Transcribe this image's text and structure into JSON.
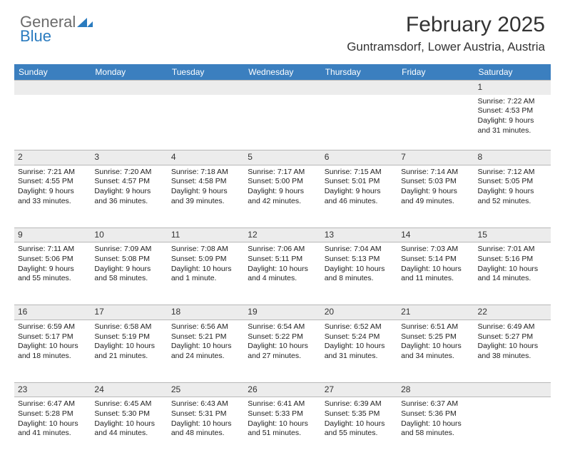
{
  "logo": {
    "general": "General",
    "blue": "Blue"
  },
  "title": "February 2025",
  "location": "Guntramsdorf, Lower Austria, Austria",
  "colors": {
    "header_bg": "#3b7fbf",
    "header_text": "#ffffff",
    "daynum_bg": "#ececec",
    "border": "#b8b8b8",
    "logo_gray": "#6b6b6b",
    "logo_blue": "#2a7bbf"
  },
  "weekdays": [
    "Sunday",
    "Monday",
    "Tuesday",
    "Wednesday",
    "Thursday",
    "Friday",
    "Saturday"
  ],
  "weeks": [
    {
      "nums": [
        "",
        "",
        "",
        "",
        "",
        "",
        "1"
      ],
      "cells": [
        null,
        null,
        null,
        null,
        null,
        null,
        {
          "sunrise": "Sunrise: 7:22 AM",
          "sunset": "Sunset: 4:53 PM",
          "dl1": "Daylight: 9 hours",
          "dl2": "and 31 minutes."
        }
      ]
    },
    {
      "nums": [
        "2",
        "3",
        "4",
        "5",
        "6",
        "7",
        "8"
      ],
      "cells": [
        {
          "sunrise": "Sunrise: 7:21 AM",
          "sunset": "Sunset: 4:55 PM",
          "dl1": "Daylight: 9 hours",
          "dl2": "and 33 minutes."
        },
        {
          "sunrise": "Sunrise: 7:20 AM",
          "sunset": "Sunset: 4:57 PM",
          "dl1": "Daylight: 9 hours",
          "dl2": "and 36 minutes."
        },
        {
          "sunrise": "Sunrise: 7:18 AM",
          "sunset": "Sunset: 4:58 PM",
          "dl1": "Daylight: 9 hours",
          "dl2": "and 39 minutes."
        },
        {
          "sunrise": "Sunrise: 7:17 AM",
          "sunset": "Sunset: 5:00 PM",
          "dl1": "Daylight: 9 hours",
          "dl2": "and 42 minutes."
        },
        {
          "sunrise": "Sunrise: 7:15 AM",
          "sunset": "Sunset: 5:01 PM",
          "dl1": "Daylight: 9 hours",
          "dl2": "and 46 minutes."
        },
        {
          "sunrise": "Sunrise: 7:14 AM",
          "sunset": "Sunset: 5:03 PM",
          "dl1": "Daylight: 9 hours",
          "dl2": "and 49 minutes."
        },
        {
          "sunrise": "Sunrise: 7:12 AM",
          "sunset": "Sunset: 5:05 PM",
          "dl1": "Daylight: 9 hours",
          "dl2": "and 52 minutes."
        }
      ]
    },
    {
      "nums": [
        "9",
        "10",
        "11",
        "12",
        "13",
        "14",
        "15"
      ],
      "cells": [
        {
          "sunrise": "Sunrise: 7:11 AM",
          "sunset": "Sunset: 5:06 PM",
          "dl1": "Daylight: 9 hours",
          "dl2": "and 55 minutes."
        },
        {
          "sunrise": "Sunrise: 7:09 AM",
          "sunset": "Sunset: 5:08 PM",
          "dl1": "Daylight: 9 hours",
          "dl2": "and 58 minutes."
        },
        {
          "sunrise": "Sunrise: 7:08 AM",
          "sunset": "Sunset: 5:09 PM",
          "dl1": "Daylight: 10 hours",
          "dl2": "and 1 minute."
        },
        {
          "sunrise": "Sunrise: 7:06 AM",
          "sunset": "Sunset: 5:11 PM",
          "dl1": "Daylight: 10 hours",
          "dl2": "and 4 minutes."
        },
        {
          "sunrise": "Sunrise: 7:04 AM",
          "sunset": "Sunset: 5:13 PM",
          "dl1": "Daylight: 10 hours",
          "dl2": "and 8 minutes."
        },
        {
          "sunrise": "Sunrise: 7:03 AM",
          "sunset": "Sunset: 5:14 PM",
          "dl1": "Daylight: 10 hours",
          "dl2": "and 11 minutes."
        },
        {
          "sunrise": "Sunrise: 7:01 AM",
          "sunset": "Sunset: 5:16 PM",
          "dl1": "Daylight: 10 hours",
          "dl2": "and 14 minutes."
        }
      ]
    },
    {
      "nums": [
        "16",
        "17",
        "18",
        "19",
        "20",
        "21",
        "22"
      ],
      "cells": [
        {
          "sunrise": "Sunrise: 6:59 AM",
          "sunset": "Sunset: 5:17 PM",
          "dl1": "Daylight: 10 hours",
          "dl2": "and 18 minutes."
        },
        {
          "sunrise": "Sunrise: 6:58 AM",
          "sunset": "Sunset: 5:19 PM",
          "dl1": "Daylight: 10 hours",
          "dl2": "and 21 minutes."
        },
        {
          "sunrise": "Sunrise: 6:56 AM",
          "sunset": "Sunset: 5:21 PM",
          "dl1": "Daylight: 10 hours",
          "dl2": "and 24 minutes."
        },
        {
          "sunrise": "Sunrise: 6:54 AM",
          "sunset": "Sunset: 5:22 PM",
          "dl1": "Daylight: 10 hours",
          "dl2": "and 27 minutes."
        },
        {
          "sunrise": "Sunrise: 6:52 AM",
          "sunset": "Sunset: 5:24 PM",
          "dl1": "Daylight: 10 hours",
          "dl2": "and 31 minutes."
        },
        {
          "sunrise": "Sunrise: 6:51 AM",
          "sunset": "Sunset: 5:25 PM",
          "dl1": "Daylight: 10 hours",
          "dl2": "and 34 minutes."
        },
        {
          "sunrise": "Sunrise: 6:49 AM",
          "sunset": "Sunset: 5:27 PM",
          "dl1": "Daylight: 10 hours",
          "dl2": "and 38 minutes."
        }
      ]
    },
    {
      "nums": [
        "23",
        "24",
        "25",
        "26",
        "27",
        "28",
        ""
      ],
      "cells": [
        {
          "sunrise": "Sunrise: 6:47 AM",
          "sunset": "Sunset: 5:28 PM",
          "dl1": "Daylight: 10 hours",
          "dl2": "and 41 minutes."
        },
        {
          "sunrise": "Sunrise: 6:45 AM",
          "sunset": "Sunset: 5:30 PM",
          "dl1": "Daylight: 10 hours",
          "dl2": "and 44 minutes."
        },
        {
          "sunrise": "Sunrise: 6:43 AM",
          "sunset": "Sunset: 5:31 PM",
          "dl1": "Daylight: 10 hours",
          "dl2": "and 48 minutes."
        },
        {
          "sunrise": "Sunrise: 6:41 AM",
          "sunset": "Sunset: 5:33 PM",
          "dl1": "Daylight: 10 hours",
          "dl2": "and 51 minutes."
        },
        {
          "sunrise": "Sunrise: 6:39 AM",
          "sunset": "Sunset: 5:35 PM",
          "dl1": "Daylight: 10 hours",
          "dl2": "and 55 minutes."
        },
        {
          "sunrise": "Sunrise: 6:37 AM",
          "sunset": "Sunset: 5:36 PM",
          "dl1": "Daylight: 10 hours",
          "dl2": "and 58 minutes."
        },
        null
      ]
    }
  ]
}
